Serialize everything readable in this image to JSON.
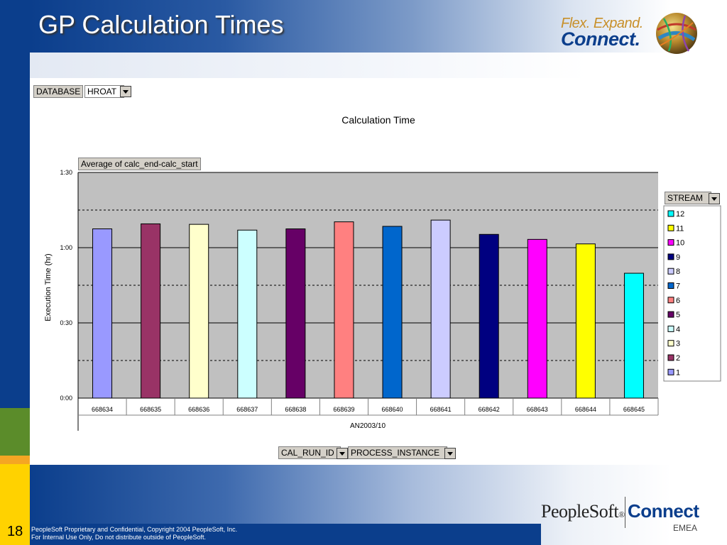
{
  "slide": {
    "title": "GP Calculation Times",
    "page_number": "18",
    "footer_line1": "PeopleSoft Proprietary and Confidential, Copyright 2004 PeopleSoft, Inc.",
    "footer_line2": "For Internal Use Only, Do not distribute outside of PeopleSoft."
  },
  "logos": {
    "flex_line1": "Flex. Expand.",
    "flex_line2": "Connect.",
    "peoplesoft": "PeopleSoft",
    "peoplesoft_mark": "®",
    "connect": "Connect",
    "region": "EMEA"
  },
  "colors": {
    "brand_blue": "#0b3e8c",
    "stripe": [
      "#0b3e8c",
      "#5b8c2a",
      "#f5a623",
      "#ffd200"
    ],
    "plot_bg": "#c0c0c0"
  },
  "pivot": {
    "page_field_label": "DATABASE",
    "page_field_value": "HROAT",
    "data_field": "Average of calc_end-calc_start",
    "series_field": "STREAM",
    "row_fields": [
      "CAL_RUN_ID",
      "PROCESS_INSTANCE"
    ]
  },
  "chart_data": {
    "type": "bar",
    "title": "Calculation Time",
    "ylabel": "Execution Time (hr)",
    "xlabel": "AN2003/10",
    "categories": [
      "668634",
      "668635",
      "668636",
      "668637",
      "668638",
      "668639",
      "668640",
      "668641",
      "668642",
      "668643",
      "668644",
      "668645"
    ],
    "series": [
      {
        "name": "1",
        "color": "#9999ff",
        "category": "668634",
        "value": 67.5
      },
      {
        "name": "2",
        "color": "#993366",
        "category": "668635",
        "value": 69.5
      },
      {
        "name": "3",
        "color": "#ffffcc",
        "category": "668636",
        "value": 69.3
      },
      {
        "name": "4",
        "color": "#ccffff",
        "category": "668637",
        "value": 67.0
      },
      {
        "name": "5",
        "color": "#660066",
        "category": "668638",
        "value": 67.5
      },
      {
        "name": "6",
        "color": "#ff8080",
        "category": "668639",
        "value": 70.3
      },
      {
        "name": "7",
        "color": "#0066cc",
        "category": "668640",
        "value": 68.5
      },
      {
        "name": "8",
        "color": "#ccccff",
        "category": "668641",
        "value": 71.0
      },
      {
        "name": "9",
        "color": "#000080",
        "category": "668642",
        "value": 65.3
      },
      {
        "name": "10",
        "color": "#ff00ff",
        "category": "668643",
        "value": 63.3
      },
      {
        "name": "11",
        "color": "#ffff00",
        "category": "668644",
        "value": 61.5
      },
      {
        "name": "12",
        "color": "#00ffff",
        "category": "668645",
        "value": 49.8
      }
    ],
    "yticks": [
      0,
      30,
      60,
      90
    ],
    "ytick_labels": [
      "0:00",
      "0:30",
      "1:00",
      "1:30"
    ],
    "ylim": [
      0,
      90
    ],
    "gridlines": {
      "solid": [
        30,
        60,
        90
      ],
      "dashed": [
        15,
        45,
        75
      ]
    },
    "legend": {
      "placement": "right",
      "order": [
        "12",
        "11",
        "10",
        "9",
        "8",
        "7",
        "6",
        "5",
        "4",
        "3",
        "2",
        "1"
      ]
    }
  }
}
